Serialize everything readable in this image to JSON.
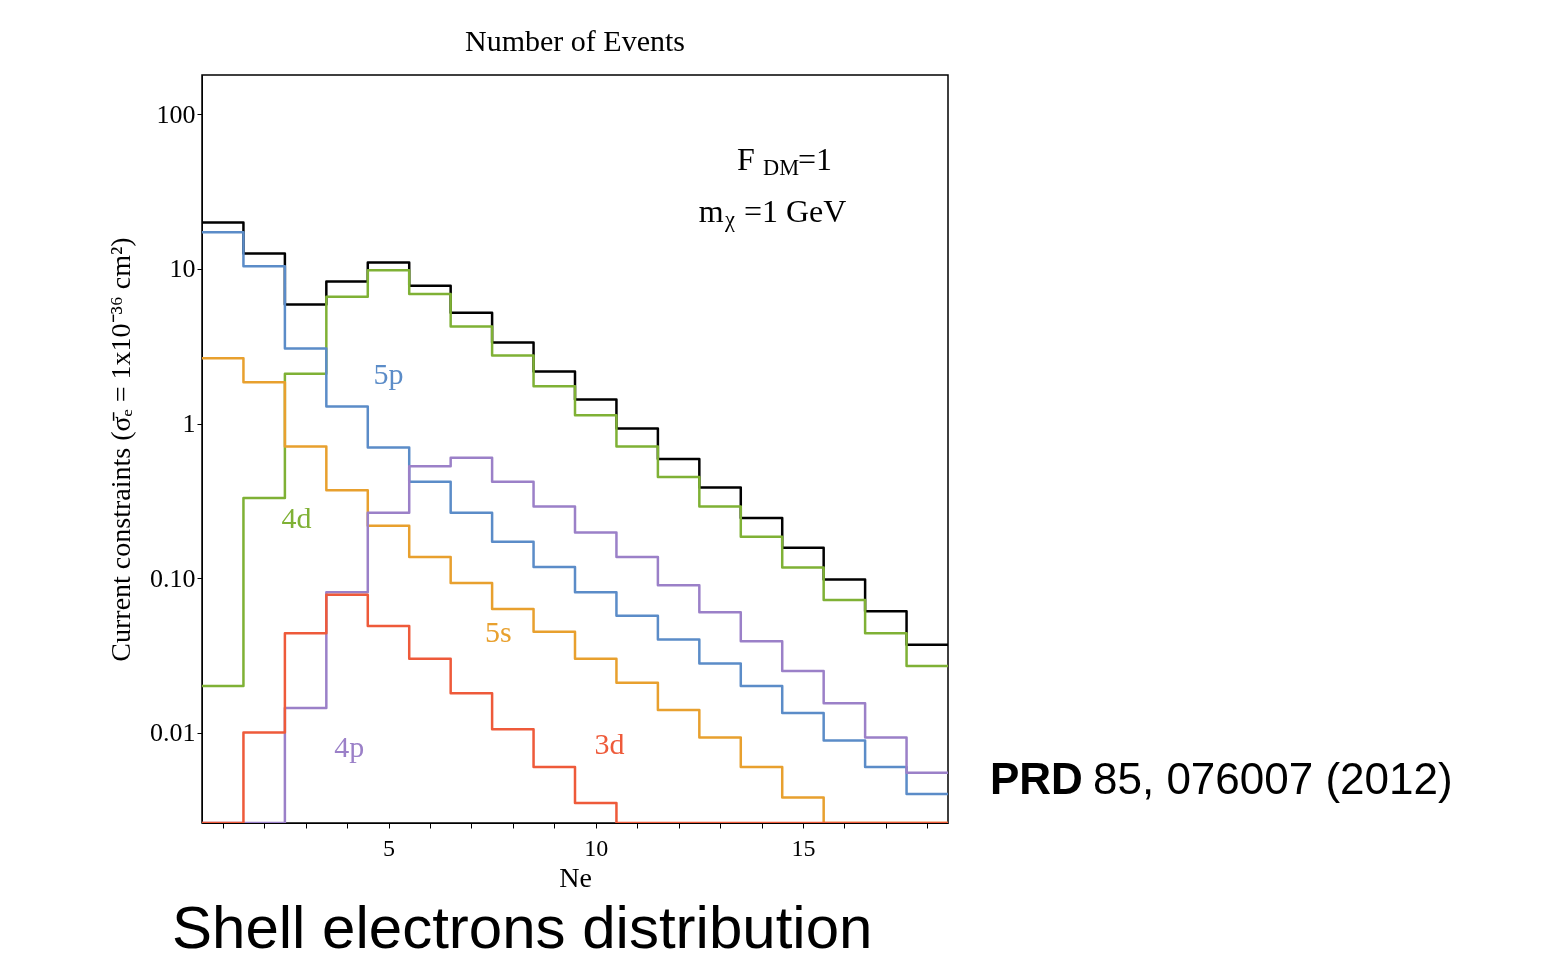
{
  "chart_data": {
    "type": "histogram",
    "title": "Number of Events",
    "xlabel": "Ne",
    "ylabel": "Current constraints (σ̄ₑ = 1x10⁻³⁶ cm²)",
    "bins": [
      0.5,
      1.5,
      2.5,
      3.5,
      4.5,
      5.5,
      6.5,
      7.5,
      8.5,
      9.5,
      10.5,
      11.5,
      12.5,
      13.5,
      14.5,
      15.5,
      16.5,
      17.5,
      18.5
    ],
    "series": [
      {
        "color": "#000000",
        "values": [
          20,
          12.6,
          5.9,
          8.3,
          11,
          7.8,
          5.2,
          3.35,
          2.17,
          1.43,
          0.93,
          0.59,
          0.385,
          0.245,
          0.157,
          0.098,
          0.061,
          0.037
        ]
      },
      {
        "name": "4d",
        "color": "#7fb135",
        "values": [
          0.02,
          0.33,
          2.1,
          6.6,
          9.8,
          6.9,
          4.25,
          2.76,
          1.74,
          1.13,
          0.71,
          0.45,
          0.29,
          0.185,
          0.117,
          0.072,
          0.044,
          0.027
        ]
      },
      {
        "name": "5p",
        "color": "#5b8cc8",
        "values": [
          17.3,
          10.4,
          3.06,
          1.29,
          0.7,
          0.42,
          0.265,
          0.172,
          0.118,
          0.081,
          0.057,
          0.04,
          0.028,
          0.02,
          0.0134,
          0.0089,
          0.006,
          0.004
        ]
      },
      {
        "name": "5s",
        "color": "#e8a02e",
        "values": [
          2.64,
          1.85,
          0.71,
          0.37,
          0.218,
          0.137,
          0.093,
          0.063,
          0.045,
          0.03,
          0.021,
          0.014,
          0.0093,
          0.006,
          0.0038,
          null,
          null,
          null
        ]
      },
      {
        "name": "4p",
        "color": "#9b80c8",
        "values": [
          null,
          null,
          0.0144,
          0.081,
          0.265,
          0.53,
          0.6,
          0.42,
          0.29,
          0.197,
          0.137,
          0.09,
          0.06,
          0.039,
          0.025,
          0.0155,
          0.0093,
          0.0055
        ]
      },
      {
        "name": "3d",
        "color": "#ee5a3a",
        "values": [
          null,
          0.01,
          0.044,
          0.078,
          0.049,
          0.03,
          0.018,
          0.0105,
          0.006,
          0.0035,
          null,
          null,
          null,
          null,
          null,
          null,
          null,
          null
        ]
      }
    ],
    "log": "y",
    "xlim": [
      0.5,
      18.5
    ],
    "xticks": [
      {
        "value": 1,
        "label": null
      },
      {
        "value": 2,
        "label": null
      },
      {
        "value": 3,
        "label": null
      },
      {
        "value": 4,
        "label": null
      },
      5,
      {
        "value": 6,
        "label": null
      },
      {
        "value": 7,
        "label": null
      },
      {
        "value": 8,
        "label": null
      },
      {
        "value": 9,
        "label": null
      },
      10,
      {
        "value": 11,
        "label": null
      },
      {
        "value": 12,
        "label": null
      },
      {
        "value": 13,
        "label": null
      },
      {
        "value": 14,
        "label": null
      },
      15,
      {
        "value": 16,
        "label": null
      },
      {
        "value": 17,
        "label": null
      },
      {
        "value": 18,
        "label": null
      }
    ],
    "ylim": [
      0.0026,
      180
    ],
    "yticks": [
      {
        "value": 0.01,
        "label": "0.01"
      },
      {
        "value": 0.1,
        "label": "0.10"
      },
      1,
      10,
      100
    ],
    "grid": false,
    "annotations": [
      "F$_{DM}$=1",
      "m$_{χ}$=1 GeV",
      "PRD 85, 076007 (2012)",
      "Shell electrons distribution"
    ]
  }
}
